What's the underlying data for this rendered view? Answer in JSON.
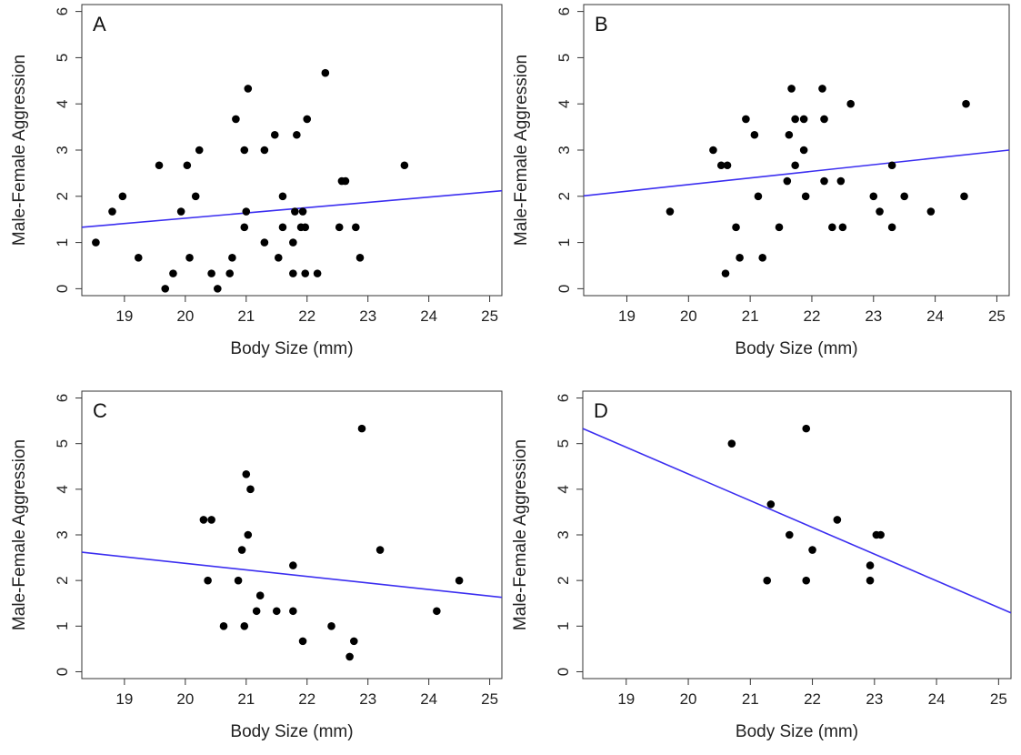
{
  "colors": {
    "trend_line": "#3b2ef0",
    "points": "#000000",
    "frame": "#333333"
  },
  "chart_data": [
    {
      "type": "scatter",
      "panel_label": "A",
      "xlabel": "Body Size (mm)",
      "ylabel": "Male-Female Aggression",
      "xlim": [
        18.3,
        25.2
      ],
      "ylim": [
        -0.15,
        6.15
      ],
      "xticks": [
        19,
        20,
        21,
        22,
        23,
        24,
        25
      ],
      "yticks": [
        0,
        1,
        2,
        3,
        4,
        5,
        6
      ],
      "trendline": {
        "x": [
          18.3,
          25.2
        ],
        "y": [
          1.33,
          2.12
        ]
      },
      "points": [
        [
          18.53,
          1.0
        ],
        [
          18.8,
          1.67
        ],
        [
          18.97,
          2.0
        ],
        [
          19.23,
          0.67
        ],
        [
          19.57,
          2.67
        ],
        [
          19.67,
          0.0
        ],
        [
          19.8,
          0.33
        ],
        [
          19.93,
          1.67
        ],
        [
          20.03,
          2.67
        ],
        [
          20.07,
          0.67
        ],
        [
          20.17,
          2.0
        ],
        [
          20.23,
          3.0
        ],
        [
          20.43,
          0.33
        ],
        [
          20.53,
          0.0
        ],
        [
          20.73,
          0.33
        ],
        [
          20.77,
          0.67
        ],
        [
          20.83,
          3.67
        ],
        [
          20.97,
          3.0
        ],
        [
          20.97,
          1.33
        ],
        [
          21.0,
          1.67
        ],
        [
          21.03,
          4.33
        ],
        [
          21.3,
          3.0
        ],
        [
          21.3,
          1.0
        ],
        [
          21.47,
          3.33
        ],
        [
          21.53,
          0.67
        ],
        [
          21.6,
          2.0
        ],
        [
          21.6,
          1.33
        ],
        [
          21.77,
          1.0
        ],
        [
          21.77,
          0.33
        ],
        [
          21.8,
          1.67
        ],
        [
          21.83,
          3.33
        ],
        [
          21.9,
          1.33
        ],
        [
          21.93,
          1.67
        ],
        [
          21.97,
          1.33
        ],
        [
          21.97,
          0.33
        ],
        [
          22.0,
          3.67
        ],
        [
          22.17,
          0.33
        ],
        [
          22.3,
          4.67
        ],
        [
          22.53,
          1.33
        ],
        [
          22.57,
          2.33
        ],
        [
          22.63,
          2.33
        ],
        [
          22.8,
          1.33
        ],
        [
          22.87,
          0.67
        ],
        [
          23.6,
          2.67
        ]
      ]
    },
    {
      "type": "scatter",
      "panel_label": "B",
      "xlabel": "Body Size (mm)",
      "ylabel": "Male-Female Aggression",
      "xlim": [
        18.3,
        25.2
      ],
      "ylim": [
        -0.15,
        6.15
      ],
      "xticks": [
        19,
        20,
        21,
        22,
        23,
        24,
        25
      ],
      "yticks": [
        0,
        1,
        2,
        3,
        4,
        5,
        6
      ],
      "trendline": {
        "x": [
          18.3,
          25.2
        ],
        "y": [
          2.01,
          3.0
        ]
      },
      "points": [
        [
          19.7,
          1.67
        ],
        [
          20.4,
          3.0
        ],
        [
          20.53,
          2.67
        ],
        [
          20.6,
          0.33
        ],
        [
          20.63,
          2.67
        ],
        [
          20.77,
          1.33
        ],
        [
          20.83,
          0.67
        ],
        [
          20.93,
          3.67
        ],
        [
          21.07,
          3.33
        ],
        [
          21.13,
          2.0
        ],
        [
          21.2,
          0.67
        ],
        [
          21.47,
          1.33
        ],
        [
          21.6,
          2.33
        ],
        [
          21.63,
          3.33
        ],
        [
          21.67,
          4.33
        ],
        [
          21.73,
          2.67
        ],
        [
          21.73,
          3.67
        ],
        [
          21.87,
          3.67
        ],
        [
          21.87,
          3.0
        ],
        [
          21.9,
          2.0
        ],
        [
          22.17,
          4.33
        ],
        [
          22.2,
          3.67
        ],
        [
          22.2,
          2.33
        ],
        [
          22.33,
          1.33
        ],
        [
          22.47,
          2.33
        ],
        [
          22.5,
          1.33
        ],
        [
          22.63,
          4.0
        ],
        [
          23.0,
          2.0
        ],
        [
          23.1,
          1.67
        ],
        [
          23.3,
          1.33
        ],
        [
          23.3,
          2.67
        ],
        [
          23.5,
          2.0
        ],
        [
          23.93,
          1.67
        ],
        [
          24.47,
          2.0
        ],
        [
          24.5,
          4.0
        ]
      ]
    },
    {
      "type": "scatter",
      "panel_label": "C",
      "xlabel": "Body Size (mm)",
      "ylabel": "Male-Female Aggression",
      "xlim": [
        18.3,
        25.2
      ],
      "ylim": [
        -0.15,
        6.15
      ],
      "xticks": [
        19,
        20,
        21,
        22,
        23,
        24,
        25
      ],
      "yticks": [
        0,
        1,
        2,
        3,
        4,
        5,
        6
      ],
      "trendline": {
        "x": [
          18.3,
          25.2
        ],
        "y": [
          2.62,
          1.63
        ]
      },
      "points": [
        [
          20.3,
          3.33
        ],
        [
          20.37,
          2.0
        ],
        [
          20.43,
          3.33
        ],
        [
          20.63,
          1.0
        ],
        [
          20.87,
          2.0
        ],
        [
          20.93,
          2.67
        ],
        [
          20.97,
          1.0
        ],
        [
          21.0,
          4.33
        ],
        [
          21.03,
          3.0
        ],
        [
          21.07,
          4.0
        ],
        [
          21.17,
          1.33
        ],
        [
          21.23,
          1.67
        ],
        [
          21.5,
          1.33
        ],
        [
          21.77,
          2.33
        ],
        [
          21.77,
          1.33
        ],
        [
          21.93,
          0.67
        ],
        [
          22.4,
          1.0
        ],
        [
          22.7,
          0.33
        ],
        [
          22.77,
          0.67
        ],
        [
          22.9,
          5.33
        ],
        [
          23.2,
          2.67
        ],
        [
          24.13,
          1.33
        ],
        [
          24.5,
          2.0
        ]
      ]
    },
    {
      "type": "scatter",
      "panel_label": "D",
      "xlabel": "Body Size (mm)",
      "ylabel": "Male-Female Aggression",
      "xlim": [
        18.3,
        25.2
      ],
      "ylim": [
        -0.15,
        6.15
      ],
      "xticks": [
        19,
        20,
        21,
        22,
        23,
        24,
        25
      ],
      "yticks": [
        0,
        1,
        2,
        3,
        4,
        5,
        6
      ],
      "trendline": {
        "x": [
          18.3,
          25.2
        ],
        "y": [
          5.33,
          1.29
        ]
      },
      "points": [
        [
          20.7,
          5.0
        ],
        [
          21.27,
          2.0
        ],
        [
          21.33,
          3.67
        ],
        [
          21.63,
          3.0
        ],
        [
          21.9,
          5.33
        ],
        [
          21.9,
          2.0
        ],
        [
          22.0,
          2.67
        ],
        [
          22.4,
          3.33
        ],
        [
          22.93,
          2.33
        ],
        [
          22.93,
          2.0
        ],
        [
          23.03,
          3.0
        ],
        [
          23.1,
          3.0
        ]
      ]
    }
  ]
}
